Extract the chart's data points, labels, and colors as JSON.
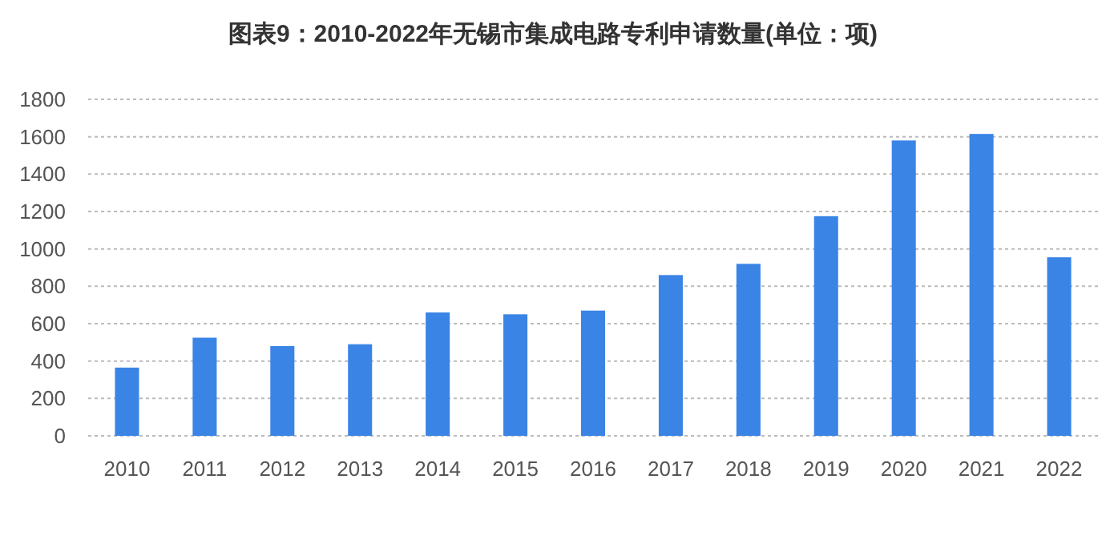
{
  "chart_data": {
    "type": "bar",
    "title": "图表9：2010-2022年无锡市集成电路专利申请数量(单位：项)",
    "categories": [
      "2010",
      "2011",
      "2012",
      "2013",
      "2014",
      "2015",
      "2016",
      "2017",
      "2018",
      "2019",
      "2020",
      "2021",
      "2022"
    ],
    "values": [
      365,
      525,
      480,
      490,
      660,
      650,
      670,
      860,
      920,
      1175,
      1580,
      1615,
      955
    ],
    "color": "#3a84e6",
    "ylim": [
      0,
      1800
    ],
    "yticks": [
      0,
      200,
      400,
      600,
      800,
      1000,
      1200,
      1400,
      1600,
      1800
    ],
    "grid": "y"
  }
}
